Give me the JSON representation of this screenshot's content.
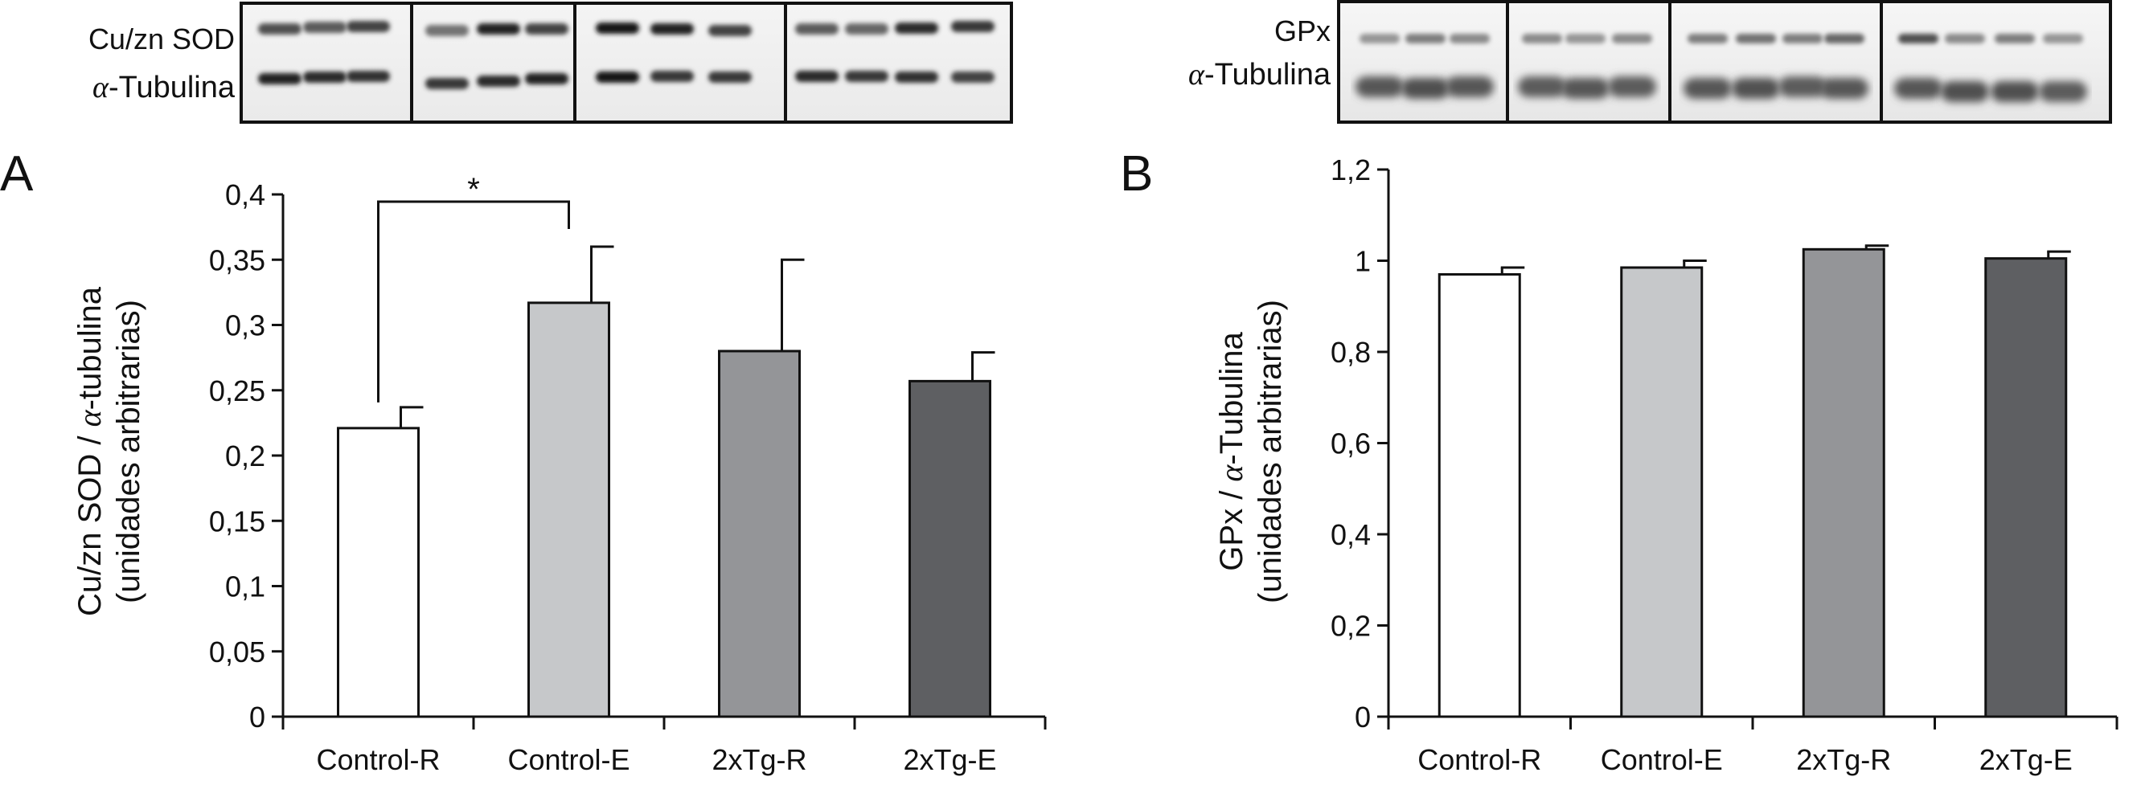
{
  "panel_a": {
    "letter": "A",
    "blot": {
      "labels": [
        {
          "main": "Cu/zn SOD",
          "greek": "",
          "rest": ""
        },
        {
          "main": "",
          "greek": "α",
          "rest": "-Tubulina"
        }
      ]
    },
    "significance": "*"
  },
  "panel_b": {
    "letter": "B",
    "blot": {
      "labels": [
        {
          "main": "GPx",
          "greek": "",
          "rest": ""
        },
        {
          "main": "",
          "greek": "α",
          "rest": "-Tubulina"
        }
      ]
    }
  },
  "chart_data": [
    {
      "type": "bar",
      "title": "",
      "categories": [
        "Control-R",
        "Control-E",
        "2xTg-R",
        "2xTg-E"
      ],
      "values": [
        0.221,
        0.317,
        0.28,
        0.257
      ],
      "errors": [
        0.016,
        0.043,
        0.07,
        0.022
      ],
      "colors": [
        "#ffffff",
        "#c6c8ca",
        "#949598",
        "#5e5f62"
      ],
      "ylim": [
        0,
        0.4
      ],
      "yticks": [
        0,
        0.05,
        0.1,
        0.15,
        0.2,
        0.25,
        0.3,
        0.35,
        0.4
      ],
      "ytick_labels": [
        "0",
        "0,05",
        "0,1",
        "0,15",
        "0,2",
        "0,25",
        "0,3",
        "0,35",
        "0,4"
      ],
      "ylabel": {
        "line1_prefix": "Cu/zn SOD / ",
        "line1_greek": "α",
        "line1_suffix": "-tubulina",
        "line2": "(unidades arbitrarias)"
      },
      "xlabel": "",
      "grid": false,
      "annotation": {
        "text": "*",
        "between": [
          "Control-R",
          "Control-E"
        ]
      }
    },
    {
      "type": "bar",
      "title": "",
      "categories": [
        "Control-R",
        "Control-E",
        "2xTg-R",
        "2xTg-E"
      ],
      "values": [
        0.97,
        0.985,
        1.025,
        1.005
      ],
      "errors": [
        0.015,
        0.015,
        0.008,
        0.015
      ],
      "colors": [
        "#ffffff",
        "#c6c8ca",
        "#949598",
        "#5e5f62"
      ],
      "ylim": [
        0,
        1.2
      ],
      "yticks": [
        0,
        0.2,
        0.4,
        0.6,
        0.8,
        1,
        1.2
      ],
      "ytick_labels": [
        "0",
        "0,2",
        "0,4",
        "0,6",
        "0,8",
        "1",
        "1,2"
      ],
      "ylabel": {
        "line1_prefix": "GPx / ",
        "line1_greek": "α",
        "line1_suffix": "-Tubulina",
        "line2": "(unidades arbitrarias)"
      },
      "xlabel": "",
      "grid": false
    }
  ]
}
